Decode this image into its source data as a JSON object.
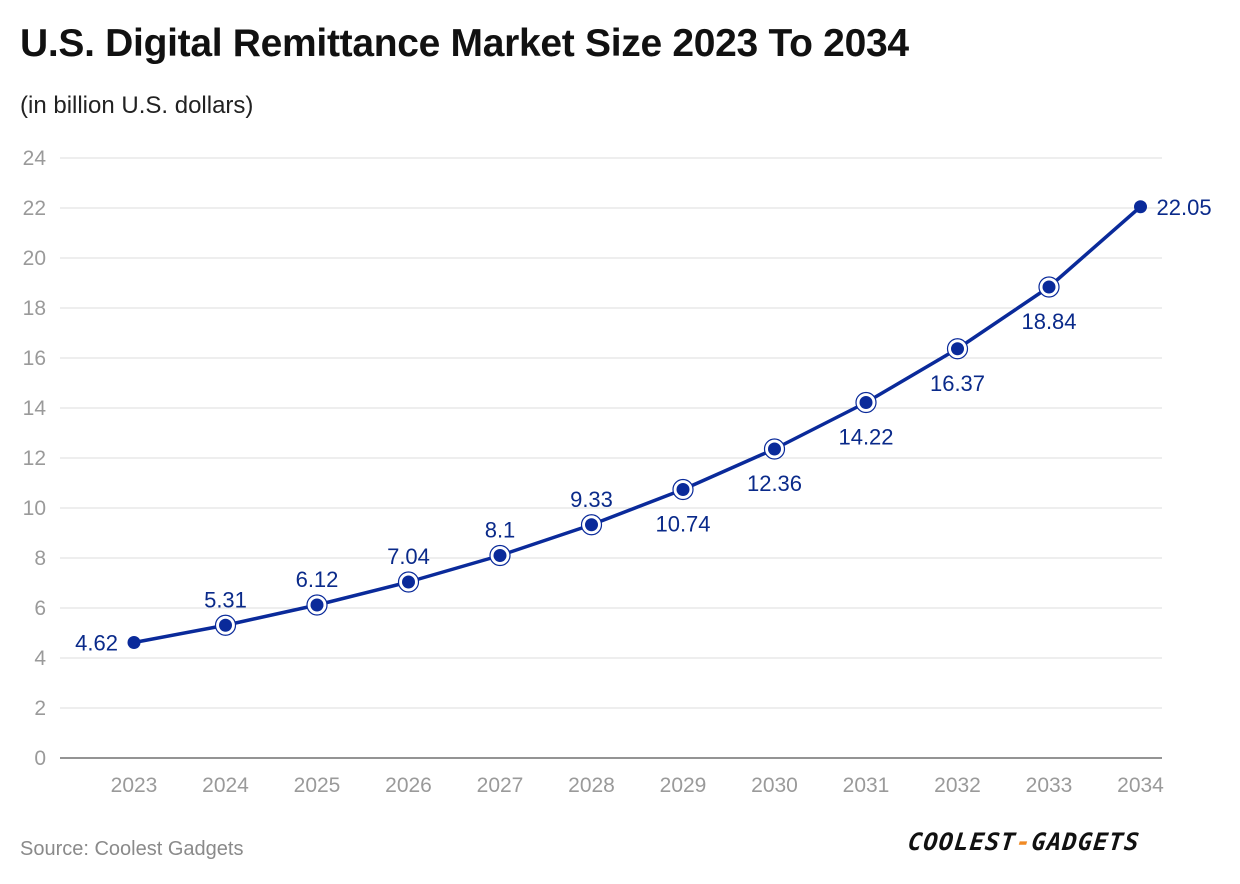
{
  "header": {
    "title": "U.S. Digital Remittance Market Size 2023 To 2034",
    "subtitle": "(in billion U.S. dollars)"
  },
  "footer": {
    "source": "Source: Coolest Gadgets",
    "logo_text": "COOLEST-GADGETS",
    "logo_left": "COOLEST",
    "logo_dash": "-",
    "logo_right": "GADGETS"
  },
  "colors": {
    "line": "#0a2a9a",
    "label": "#0a2a8a",
    "grid": "#dddddd",
    "tick": "#9a9a9a",
    "accent": "#f08a24"
  },
  "chart_data": {
    "type": "line",
    "title": "U.S. Digital Remittance Market Size 2023 To 2034",
    "subtitle": "(in billion U.S. dollars)",
    "xlabel": "",
    "ylabel": "",
    "categories": [
      "2023",
      "2024",
      "2025",
      "2026",
      "2027",
      "2028",
      "2029",
      "2030",
      "2031",
      "2032",
      "2033",
      "2034"
    ],
    "series": [
      {
        "name": "Market Size",
        "values": [
          4.62,
          5.31,
          6.12,
          7.04,
          8.1,
          9.33,
          10.74,
          12.36,
          14.22,
          16.37,
          18.84,
          22.05
        ],
        "labels": [
          "4.62",
          "5.31",
          "6.12",
          "7.04",
          "8.1",
          "9.33",
          "10.74",
          "12.36",
          "14.22",
          "16.37",
          "18.84",
          "22.05"
        ]
      }
    ],
    "label_position": [
      "left",
      "above",
      "above",
      "above",
      "above",
      "above",
      "below",
      "below",
      "below",
      "below",
      "below",
      "right"
    ],
    "yticks": [
      "0",
      "2",
      "4",
      "6",
      "8",
      "10",
      "12",
      "14",
      "16",
      "18",
      "20",
      "22",
      "24"
    ],
    "ylim": [
      0,
      24
    ],
    "grid": true,
    "legend": "none"
  }
}
